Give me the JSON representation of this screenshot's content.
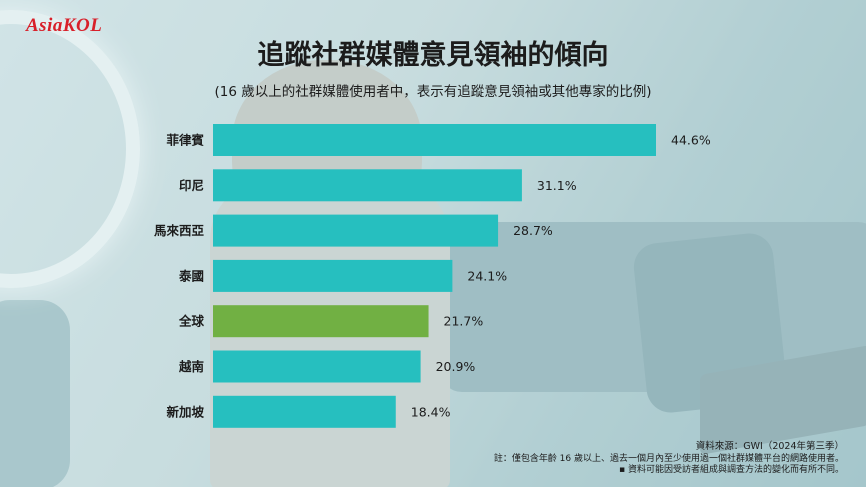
{
  "brand": {
    "logo_text": "AsiaKOL"
  },
  "colors": {
    "bar": "#26bfbf",
    "highlight": "#71b043",
    "text": "#1c1c1c"
  },
  "chart_data": {
    "type": "bar",
    "orientation": "horizontal",
    "title": "追蹤社群媒體意見領袖的傾向",
    "subtitle": "(16 歲以上的社群媒體使用者中，表示有追蹤意見領袖或其他專家的比例)",
    "categories": [
      "菲律賓",
      "印尼",
      "馬來西亞",
      "泰國",
      "全球",
      "越南",
      "新加坡"
    ],
    "values": [
      44.6,
      31.1,
      28.7,
      24.1,
      21.7,
      20.9,
      18.4
    ],
    "value_labels": [
      "44.6%",
      "31.1%",
      "28.7%",
      "24.1%",
      "21.7%",
      "20.9%",
      "18.4%"
    ],
    "highlight_category": "全球",
    "xlim": [
      0,
      44.6
    ],
    "xlabel": "",
    "ylabel": "",
    "grid": false
  },
  "footnotes": {
    "source": "資料來源：GWI（2024年第三季）",
    "note1": "註：僅包含年齡 16 歲以上、過去一個月內至少使用過一個社群媒體平台的網路使用者。",
    "note2": "▪ 資料可能因受訪者組成與調查方法的變化而有所不同。"
  }
}
